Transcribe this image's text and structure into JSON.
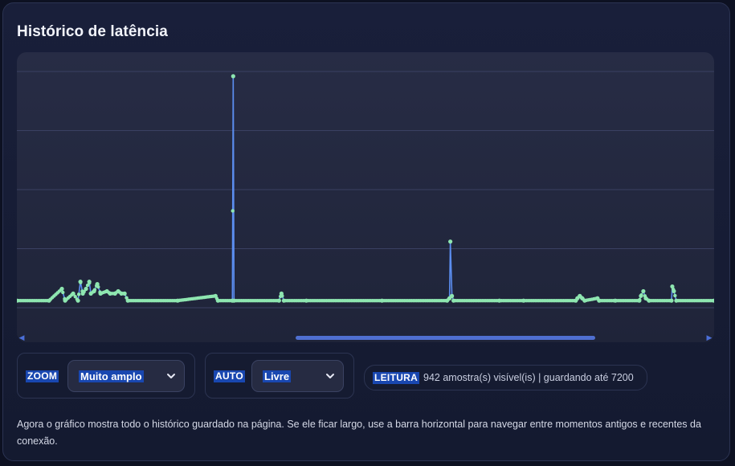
{
  "panel": {
    "title": "Histórico de latência"
  },
  "controls": {
    "zoom": {
      "tag": "ZOOM",
      "selected": "Muito amplo"
    },
    "auto": {
      "tag": "AUTO",
      "selected": "Livre"
    },
    "reading": {
      "tag": "LEITURA",
      "text": "942 amostra(s) visível(is) | guardando até 7200"
    }
  },
  "description": "Agora o gráfico mostra todo o histórico guardado na página. Se ele ficar largo, use a barra horizontal para navegar entre momentos antigos e recentes da conexão.",
  "colors": {
    "line": "#5b8def",
    "points": "#8ee6b0",
    "accent_tag": "#1947b0"
  },
  "scrollbar": {
    "thumb_start_fraction": 0.4,
    "thumb_length_fraction": 0.43
  },
  "chart_data": {
    "type": "line",
    "title": "",
    "xlabel": "",
    "ylabel": "",
    "grid": true,
    "ylim": [
      0,
      100
    ],
    "points": [
      [
        0,
        3
      ],
      [
        40,
        3
      ],
      [
        56,
        8
      ],
      [
        60,
        3
      ],
      [
        70,
        6
      ],
      [
        76,
        3
      ],
      [
        79,
        11
      ],
      [
        82,
        6
      ],
      [
        86,
        8
      ],
      [
        90,
        11
      ],
      [
        92,
        6
      ],
      [
        96,
        7
      ],
      [
        100,
        10
      ],
      [
        104,
        6
      ],
      [
        112,
        7
      ],
      [
        116,
        6
      ],
      [
        122,
        6
      ],
      [
        126,
        7
      ],
      [
        130,
        6
      ],
      [
        134,
        6
      ],
      [
        138,
        3
      ],
      [
        200,
        3
      ],
      [
        247,
        5
      ],
      [
        250,
        3
      ],
      [
        268,
        3
      ],
      [
        269,
        98
      ],
      [
        270,
        3
      ],
      [
        326,
        3
      ],
      [
        329,
        6
      ],
      [
        332,
        3
      ],
      [
        360,
        3
      ],
      [
        454,
        3
      ],
      [
        535,
        3
      ],
      [
        538,
        4
      ],
      [
        539,
        28
      ],
      [
        541,
        5
      ],
      [
        543,
        3
      ],
      [
        600,
        3
      ],
      [
        630,
        3
      ],
      [
        695,
        3
      ],
      [
        697,
        4
      ],
      [
        700,
        5
      ],
      [
        703,
        4
      ],
      [
        706,
        3
      ],
      [
        722,
        4
      ],
      [
        724,
        3
      ],
      [
        744,
        3
      ],
      [
        774,
        3
      ],
      [
        776,
        5
      ],
      [
        779,
        7
      ],
      [
        782,
        4
      ],
      [
        786,
        3
      ],
      [
        814,
        3
      ],
      [
        815,
        9
      ],
      [
        817,
        7
      ],
      [
        820,
        3
      ],
      [
        867,
        3
      ]
    ]
  }
}
